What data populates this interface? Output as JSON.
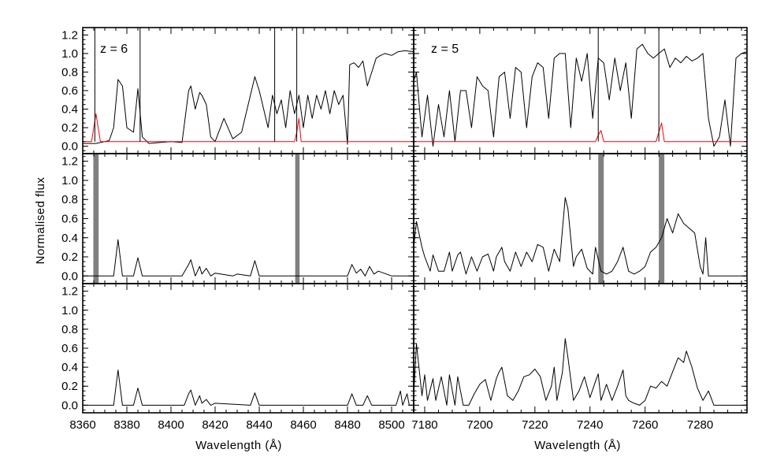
{
  "chart_data": [
    {
      "type": "line",
      "panel": "top-left",
      "annotation": "z = 6",
      "xlim": [
        8360,
        8510
      ],
      "ylim": [
        -0.08,
        1.28
      ],
      "yticks": [
        0.0,
        0.2,
        0.4,
        0.6,
        0.8,
        1.0,
        1.2
      ],
      "series": [
        {
          "color": "#000000",
          "x": [
            8360,
            8366,
            8372,
            8374,
            8376,
            8378,
            8380,
            8383,
            8385,
            8387,
            8390,
            8395,
            8400,
            8405,
            8408,
            8409,
            8411,
            8413,
            8414,
            8416,
            8418,
            8420,
            8424,
            8428,
            8432,
            8436,
            8438,
            8440,
            8442,
            8444,
            8446,
            8448,
            8450,
            8452,
            8454,
            8456,
            8458,
            8460,
            8462,
            8464,
            8466,
            8468,
            8470,
            8472,
            8474,
            8476,
            8478,
            8480,
            8481,
            8483,
            8485,
            8487,
            8489,
            8491,
            8493,
            8495,
            8497,
            8500,
            8503,
            8506,
            8510
          ],
          "y": [
            0.03,
            0.03,
            0.06,
            0.2,
            0.72,
            0.65,
            0.2,
            0.15,
            0.62,
            0.1,
            0.03,
            0.04,
            0.05,
            0.04,
            0.6,
            0.65,
            0.4,
            0.58,
            0.55,
            0.45,
            0.1,
            0.05,
            0.3,
            0.08,
            0.15,
            0.55,
            0.75,
            0.6,
            0.4,
            0.2,
            0.55,
            0.35,
            0.5,
            0.2,
            0.6,
            0.35,
            0.55,
            0.2,
            0.55,
            0.3,
            0.55,
            0.4,
            0.6,
            0.35,
            0.6,
            0.45,
            0.55,
            0.02,
            0.88,
            0.9,
            0.85,
            0.92,
            0.65,
            0.8,
            0.95,
            0.98,
            1.0,
            0.98,
            1.02,
            1.03,
            1.02
          ]
        },
        {
          "color": "#ff0000",
          "x": [
            8360,
            8364,
            8365,
            8366,
            8367,
            8368,
            8456,
            8457,
            8458,
            8459,
            8510
          ],
          "y": [
            0.05,
            0.05,
            0.2,
            0.35,
            0.2,
            0.05,
            0.05,
            0.15,
            0.3,
            0.05,
            0.05
          ]
        }
      ],
      "spikes_x": [
        8365.5,
        8386,
        8447,
        8457
      ]
    },
    {
      "type": "line",
      "panel": "top-right",
      "annotation": "z = 5",
      "xlim": [
        7176,
        7297
      ],
      "ylim": [
        -0.08,
        1.28
      ],
      "series": [
        {
          "color": "#000000",
          "x": [
            7176,
            7177,
            7179,
            7181,
            7183,
            7185,
            7187,
            7189,
            7191,
            7193,
            7195,
            7197,
            7199,
            7201,
            7203,
            7205,
            7207,
            7209,
            7211,
            7213,
            7215,
            7217,
            7219,
            7221,
            7223,
            7225,
            7227,
            7229,
            7231,
            7233,
            7235,
            7237,
            7239,
            7241,
            7243,
            7245,
            7247,
            7249,
            7251,
            7253,
            7255,
            7257,
            7259,
            7261,
            7263,
            7265,
            7267,
            7269,
            7271,
            7273,
            7275,
            7277,
            7279,
            7281,
            7283,
            7285,
            7287,
            7289,
            7291,
            7293,
            7295,
            7297
          ],
          "y": [
            0.7,
            0.8,
            0.1,
            0.55,
            0.0,
            0.45,
            0.1,
            0.6,
            0.05,
            0.6,
            0.6,
            0.2,
            0.75,
            0.65,
            0.6,
            0.1,
            0.75,
            0.8,
            0.3,
            0.85,
            0.8,
            0.2,
            0.75,
            0.9,
            0.85,
            0.3,
            0.95,
            1.0,
            1.0,
            0.2,
            0.95,
            0.7,
            1.0,
            0.3,
            0.95,
            0.9,
            0.5,
            0.95,
            0.6,
            0.9,
            0.3,
            1.05,
            1.1,
            1.0,
            0.95,
            1.0,
            1.05,
            0.85,
            0.95,
            0.9,
            0.97,
            0.92,
            0.95,
            1.0,
            0.3,
            0.0,
            0.1,
            0.5,
            0.0,
            0.95,
            1.0,
            1.02
          ]
        },
        {
          "color": "#ff0000",
          "x": [
            7176,
            7242,
            7243,
            7244,
            7245,
            7264,
            7265,
            7266,
            7267,
            7297
          ],
          "y": [
            0.05,
            0.05,
            0.12,
            0.17,
            0.05,
            0.05,
            0.15,
            0.25,
            0.05,
            0.05
          ]
        }
      ],
      "spikes_x": [
        7243,
        7265
      ]
    },
    {
      "type": "line",
      "panel": "middle-left",
      "xlim": [
        8360,
        8510
      ],
      "ylim": [
        -0.08,
        1.28
      ],
      "yticks": [
        0.0,
        0.2,
        0.4,
        0.6,
        0.8,
        1.0,
        1.2
      ],
      "series": [
        {
          "color": "#000000",
          "x": [
            8360,
            8374,
            8376,
            8378,
            8383,
            8385,
            8387,
            8405,
            8408,
            8409,
            8411,
            8413,
            8414,
            8416,
            8418,
            8420,
            8428,
            8430,
            8436,
            8438,
            8440,
            8455,
            8480,
            8482,
            8484,
            8486,
            8488,
            8490,
            8492,
            8494,
            8500,
            8510
          ],
          "y": [
            0.0,
            0.0,
            0.38,
            0.0,
            0.0,
            0.19,
            0.0,
            0.0,
            0.12,
            0.17,
            0.0,
            0.1,
            0.02,
            0.08,
            0.0,
            0.03,
            0.0,
            0.02,
            0.0,
            0.16,
            0.0,
            0.0,
            0.0,
            0.12,
            0.03,
            0.07,
            0.0,
            0.1,
            0.02,
            0.05,
            0.0,
            0.0
          ]
        }
      ],
      "masks_x": [
        [
          8364.8,
          8367.2
        ],
        [
          8456.3,
          8458.3
        ]
      ]
    },
    {
      "type": "line",
      "panel": "middle-right",
      "xlim": [
        7176,
        7297
      ],
      "ylim": [
        -0.08,
        1.28
      ],
      "series": [
        {
          "color": "#000000",
          "x": [
            7176,
            7177,
            7179,
            7180,
            7182,
            7183,
            7185,
            7187,
            7189,
            7190,
            7192,
            7193,
            7195,
            7197,
            7199,
            7201,
            7203,
            7205,
            7206,
            7208,
            7209,
            7211,
            7213,
            7215,
            7217,
            7219,
            7221,
            7223,
            7225,
            7227,
            7229,
            7231,
            7232,
            7234,
            7235,
            7237,
            7239,
            7241,
            7242,
            7244,
            7246,
            7248,
            7250,
            7252,
            7254,
            7256,
            7258,
            7260,
            7262,
            7264,
            7266,
            7268,
            7270,
            7272,
            7274,
            7276,
            7278,
            7280,
            7281,
            7282,
            7283,
            7297
          ],
          "y": [
            0.3,
            0.57,
            0.3,
            0.2,
            0.05,
            0.22,
            0.05,
            0.05,
            0.25,
            0.05,
            0.22,
            0.25,
            0.02,
            0.2,
            0.05,
            0.2,
            0.23,
            0.05,
            0.2,
            0.3,
            0.15,
            0.05,
            0.25,
            0.1,
            0.25,
            0.15,
            0.33,
            0.3,
            0.05,
            0.28,
            0.15,
            0.82,
            0.7,
            0.1,
            0.2,
            0.28,
            0.08,
            0.02,
            0.3,
            0.05,
            0.02,
            0.05,
            0.15,
            0.3,
            0.05,
            0.02,
            0.05,
            0.1,
            0.25,
            0.3,
            0.4,
            0.6,
            0.45,
            0.65,
            0.55,
            0.5,
            0.45,
            0.1,
            0.02,
            0.4,
            0.0,
            0.0
          ]
        }
      ],
      "masks_x": [
        [
          7243,
          7245
        ],
        [
          7265,
          7267
        ]
      ]
    },
    {
      "type": "line",
      "panel": "bottom-left",
      "xlim": [
        8360,
        8510
      ],
      "ylim": [
        -0.08,
        1.28
      ],
      "yticks": [
        0.0,
        0.2,
        0.4,
        0.6,
        0.8,
        1.0,
        1.2
      ],
      "xticks": [
        8360,
        8380,
        8400,
        8420,
        8440,
        8460,
        8480,
        8500
      ],
      "series": [
        {
          "color": "#000000",
          "x": [
            8360,
            8374,
            8376,
            8378,
            8383,
            8385,
            8387,
            8406,
            8408,
            8409,
            8411,
            8413,
            8414,
            8416,
            8418,
            8420,
            8436,
            8438,
            8440,
            8480,
            8482,
            8484,
            8487,
            8489,
            8491,
            8502,
            8504,
            8505,
            8507,
            8508,
            8510
          ],
          "y": [
            0.0,
            0.0,
            0.37,
            0.0,
            0.0,
            0.18,
            0.0,
            0.0,
            0.12,
            0.16,
            0.0,
            0.1,
            0.02,
            0.06,
            0.0,
            0.02,
            0.0,
            0.13,
            0.0,
            0.0,
            0.12,
            0.0,
            0.0,
            0.1,
            0.0,
            0.0,
            0.15,
            0.0,
            0.12,
            0.0,
            0.0
          ]
        }
      ]
    },
    {
      "type": "line",
      "panel": "bottom-right",
      "xlim": [
        7176,
        7297
      ],
      "ylim": [
        -0.08,
        1.28
      ],
      "xticks": [
        7180,
        7200,
        7220,
        7240,
        7260,
        7280
      ],
      "series": [
        {
          "color": "#000000",
          "x": [
            7176,
            7177,
            7179,
            7180,
            7181,
            7183,
            7184,
            7186,
            7188,
            7189,
            7191,
            7192,
            7194,
            7196,
            7198,
            7200,
            7202,
            7204,
            7206,
            7207,
            7208,
            7210,
            7212,
            7214,
            7216,
            7218,
            7220,
            7222,
            7224,
            7226,
            7227,
            7228,
            7230,
            7231,
            7232,
            7234,
            7236,
            7238,
            7240,
            7242,
            7243,
            7244,
            7246,
            7248,
            7250,
            7252,
            7253,
            7254,
            7256,
            7258,
            7260,
            7262,
            7264,
            7266,
            7268,
            7270,
            7272,
            7274,
            7275,
            7277,
            7279,
            7281,
            7283,
            7285,
            7297
          ],
          "y": [
            0.1,
            0.65,
            0.1,
            0.32,
            0.05,
            0.28,
            0.05,
            0.3,
            0.0,
            0.32,
            0.0,
            0.3,
            0.0,
            0.0,
            0.12,
            0.22,
            0.27,
            0.05,
            0.28,
            0.35,
            0.4,
            0.1,
            0.05,
            0.15,
            0.3,
            0.32,
            0.38,
            0.3,
            0.05,
            0.2,
            0.4,
            0.05,
            0.35,
            0.7,
            0.5,
            0.05,
            0.15,
            0.3,
            0.08,
            0.25,
            0.33,
            0.05,
            0.22,
            0.05,
            0.2,
            0.37,
            0.1,
            0.05,
            0.02,
            0.0,
            0.05,
            0.2,
            0.18,
            0.25,
            0.2,
            0.35,
            0.5,
            0.45,
            0.57,
            0.4,
            0.18,
            0.05,
            0.15,
            0.0,
            0.0
          ]
        }
      ]
    }
  ],
  "ylabel": "Normalised flux",
  "xlabel_left": "Wavelength (Å)",
  "xlabel_right": "Wavelength (Å)"
}
